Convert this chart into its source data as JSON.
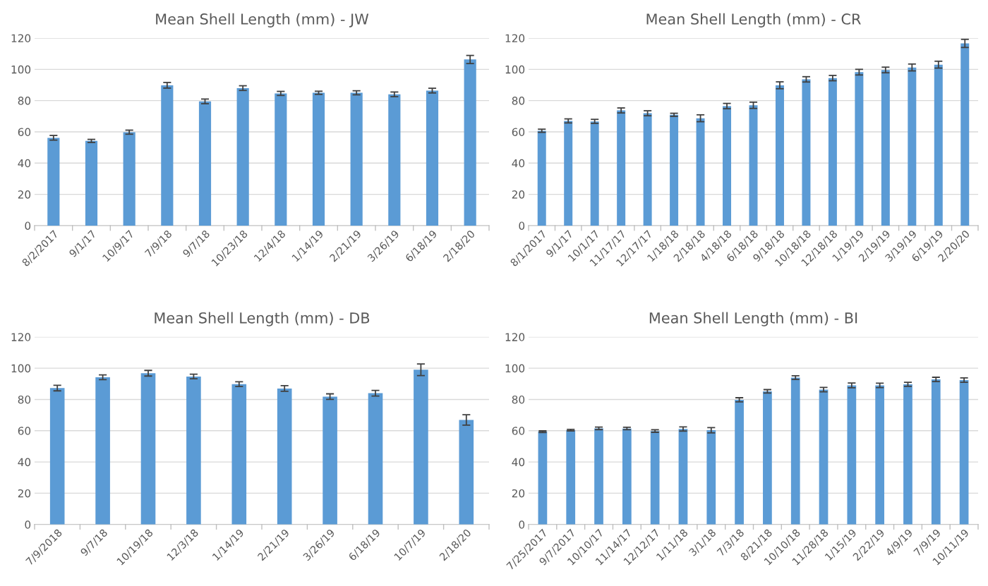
{
  "chart_data": [
    {
      "type": "bar",
      "title": "Mean Shell Length (mm) - JW",
      "categories": [
        "8/2/2017",
        "9/1/17",
        "10/9/17",
        "7/9/18",
        "9/7/18",
        "10/23/18",
        "12/4/18",
        "1/14/19",
        "2/21/19",
        "3/26/19",
        "6/18/19",
        "2/18/20"
      ],
      "values": [
        56.2,
        54.2,
        59.8,
        89.8,
        79.5,
        88,
        84.6,
        85,
        85,
        84,
        86.4,
        106.3
      ],
      "errors": [
        1.5,
        1,
        1.3,
        1.8,
        1.5,
        1.5,
        1.3,
        1,
        1.3,
        1.5,
        1.5,
        2.6
      ],
      "color": "#5b9bd5",
      "ylim": [
        0,
        120
      ],
      "yticks": [
        0,
        20,
        40,
        60,
        80,
        100,
        120
      ],
      "grid": "y",
      "legend": false
    },
    {
      "type": "bar",
      "title": "Mean Shell Length (mm) - CR",
      "categories": [
        "8/1/2017",
        "9/1/17",
        "10/1/17",
        "11/17/17",
        "12/17/17",
        "1/18/18",
        "2/18/18",
        "4/18/18",
        "6/18/18",
        "9/18/18",
        "10/18/18",
        "12/18/18",
        "1/19/19",
        "2/19/19",
        "3/19/19",
        "6/19/19",
        "2/20/20"
      ],
      "values": [
        60.7,
        67,
        66.7,
        73.7,
        71.9,
        70.9,
        68.7,
        76.5,
        77,
        89.8,
        93.6,
        94.4,
        98.2,
        99.6,
        101.2,
        103,
        116.6
      ],
      "errors": [
        1,
        1.3,
        1.3,
        1.6,
        1.6,
        1,
        2.2,
        1.7,
        2,
        2.2,
        1.7,
        1.7,
        1.8,
        1.8,
        2.2,
        2.2,
        2.6
      ],
      "color": "#5b9bd5",
      "ylim": [
        0,
        120
      ],
      "yticks": [
        0,
        20,
        40,
        60,
        80,
        100,
        120
      ],
      "grid": "y",
      "legend": false
    },
    {
      "type": "bar",
      "title": "Mean Shell Length (mm) - DB",
      "categories": [
        "7/9/2018",
        "9/7/18",
        "10/19/18",
        "12/3/18",
        "1/14/19",
        "2/21/19",
        "3/26/19",
        "6/18/19",
        "10/7/19",
        "2/18/20"
      ],
      "values": [
        87.3,
        94.2,
        96.8,
        94.7,
        89.8,
        87,
        81.8,
        84,
        99,
        66.9
      ],
      "errors": [
        1.8,
        1.5,
        1.8,
        1.5,
        1.5,
        1.8,
        1.8,
        1.8,
        3.7,
        3.3
      ],
      "color": "#5b9bd5",
      "ylim": [
        0,
        120
      ],
      "yticks": [
        0,
        20,
        40,
        60,
        80,
        100,
        120
      ],
      "grid": "y",
      "legend": false
    },
    {
      "type": "bar",
      "title": "Mean Shell Length (mm) - BI",
      "categories": [
        "7/25/2017",
        "9/7/2017",
        "10/10/17",
        "11/14/17",
        "12/12/17",
        "1/11/18",
        "3/1/18",
        "7/3/18",
        "8/21/18",
        "10/10/18",
        "11/28/18",
        "1/15/19",
        "2/22/19",
        "4/9/19",
        "7/9/19",
        "10/11/19"
      ],
      "values": [
        59.4,
        60.4,
        61.5,
        61.4,
        59.8,
        61.1,
        60.3,
        79.8,
        85.2,
        94,
        86.3,
        89,
        89,
        89.7,
        92.8,
        92.4
      ],
      "errors": [
        0.5,
        0.5,
        0.8,
        0.8,
        0.8,
        1.3,
        1.7,
        1.3,
        1.1,
        1.2,
        1.4,
        1.5,
        1.4,
        1.3,
        1.4,
        1.4
      ],
      "color": "#5b9bd5",
      "ylim": [
        0,
        120
      ],
      "yticks": [
        0,
        20,
        40,
        60,
        80,
        100,
        120
      ],
      "grid": "y",
      "legend": false
    }
  ]
}
